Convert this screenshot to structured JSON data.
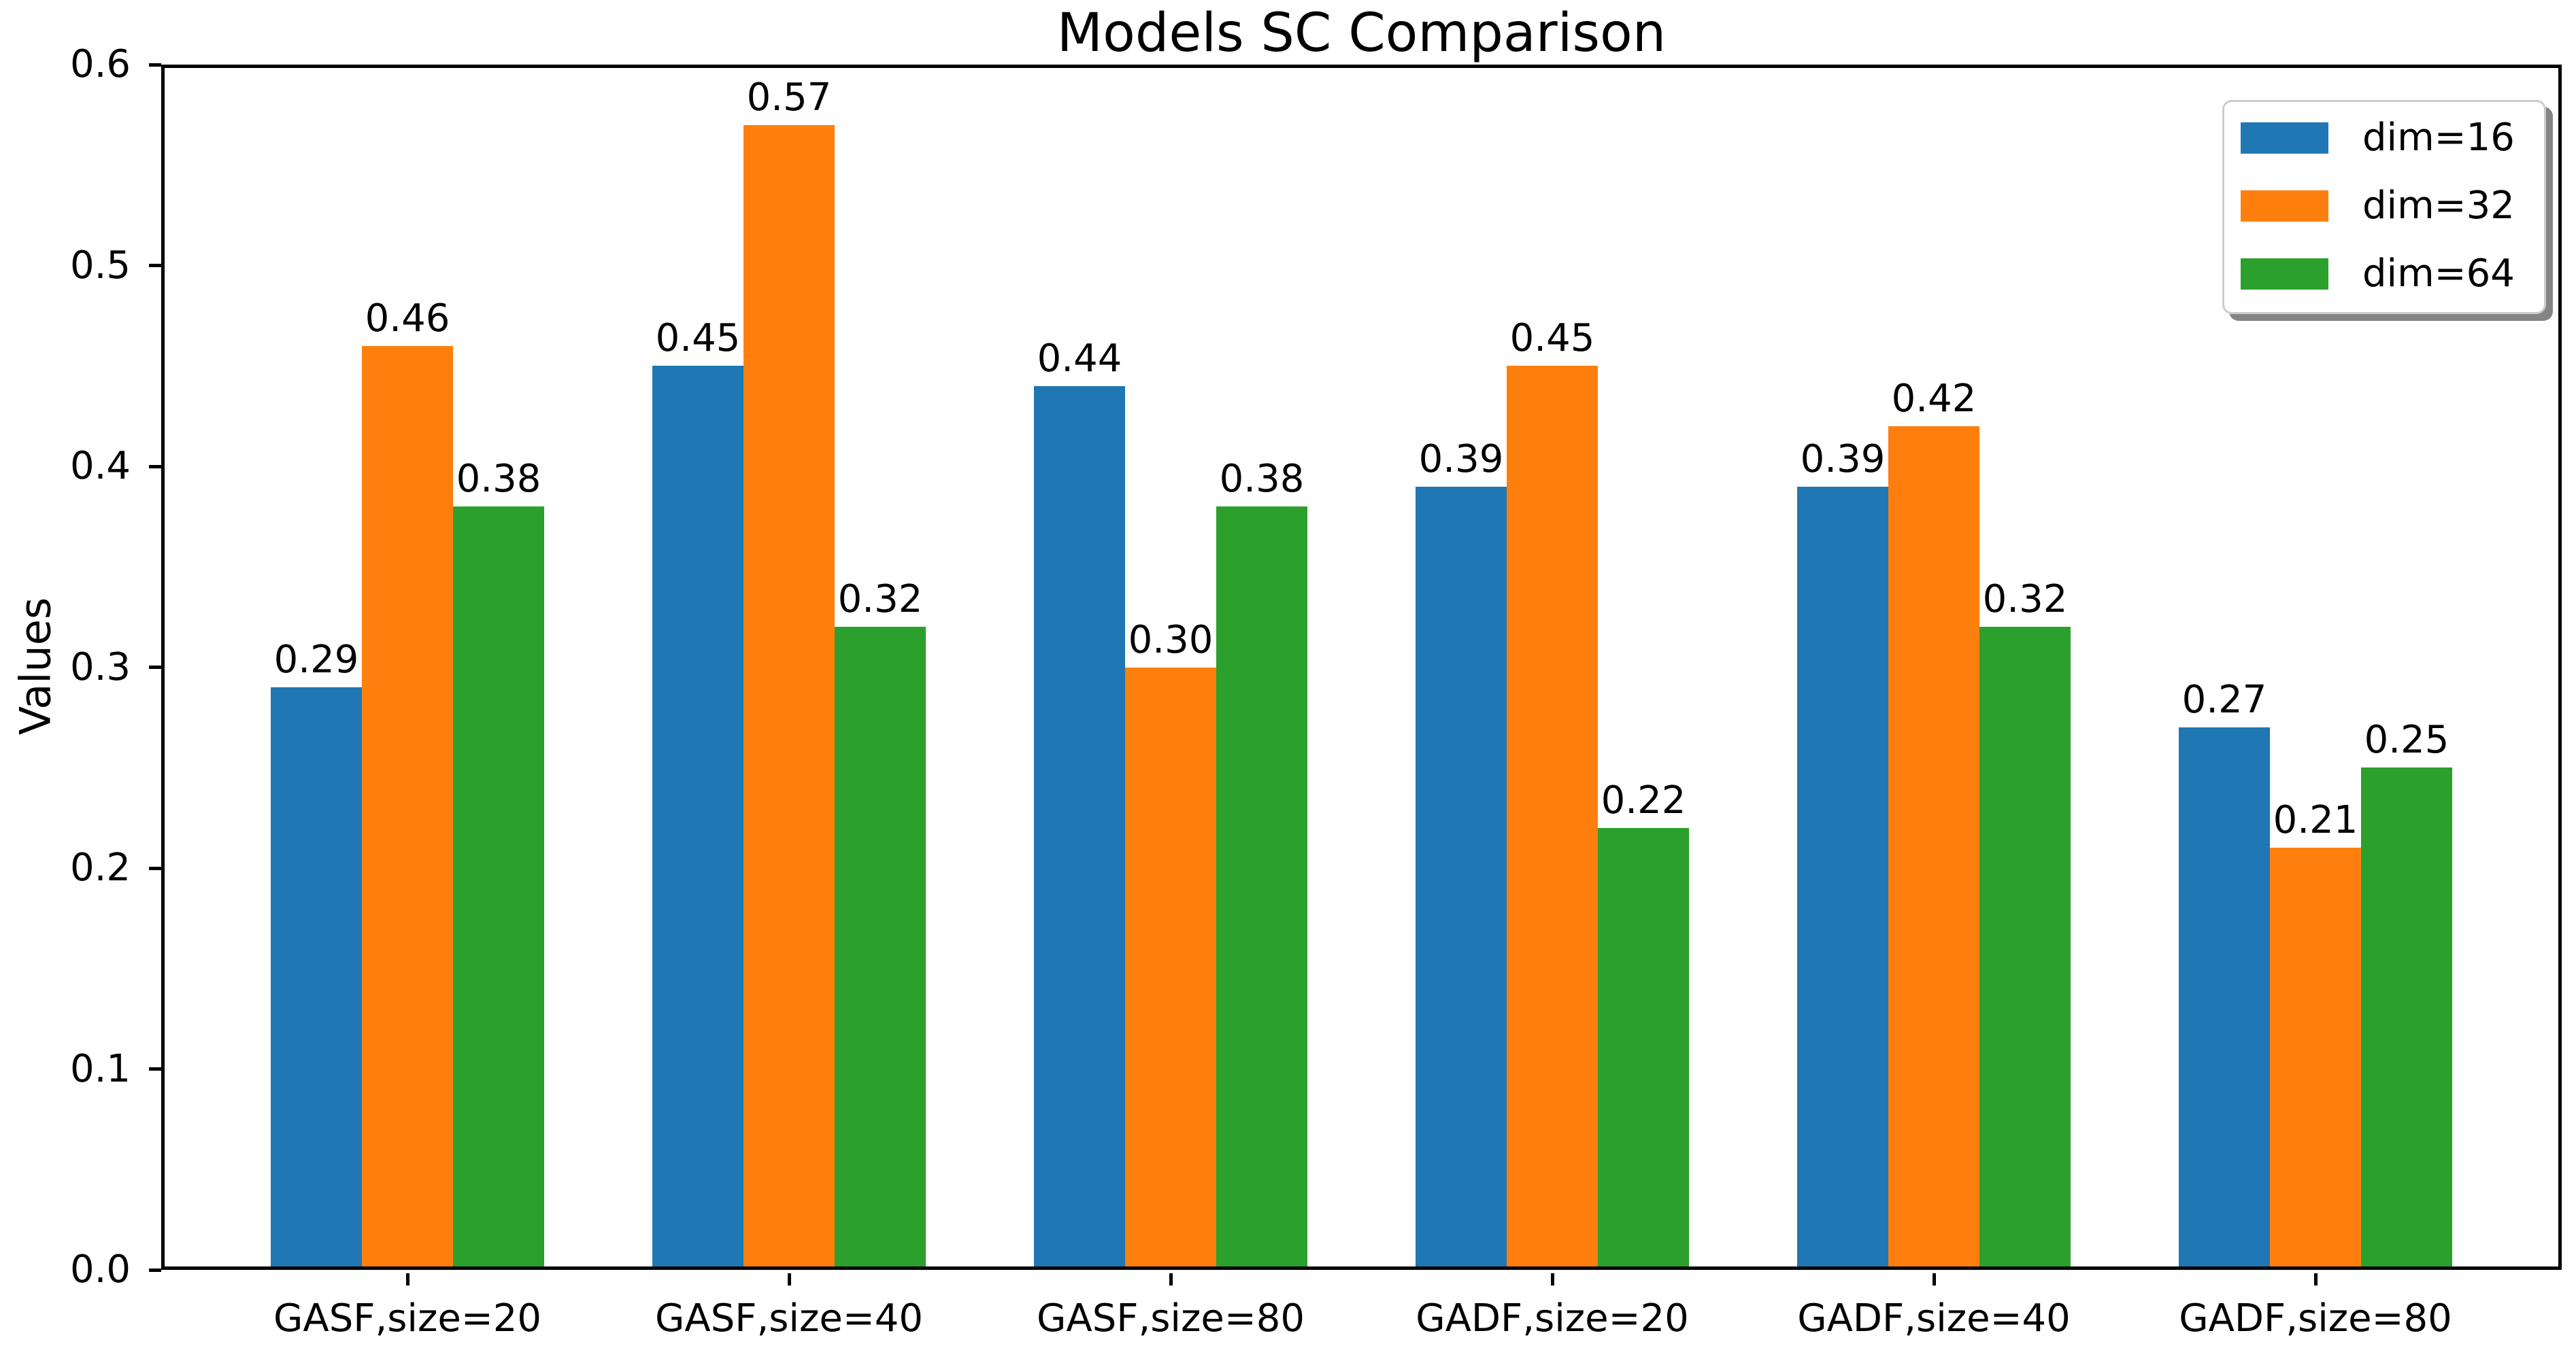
{
  "chart_data": {
    "type": "bar",
    "title": "Models SC Comparison",
    "xlabel": "",
    "ylabel": "Values",
    "categories": [
      "GASF,size=20",
      "GASF,size=40",
      "GASF,size=80",
      "GADF,size=20",
      "GADF,size=40",
      "GADF,size=80"
    ],
    "series": [
      {
        "name": "dim=16",
        "color": "#1f77b4",
        "values": [
          0.29,
          0.45,
          0.44,
          0.39,
          0.39,
          0.27
        ]
      },
      {
        "name": "dim=32",
        "color": "#ff7f0e",
        "values": [
          0.46,
          0.57,
          0.3,
          0.45,
          0.42,
          0.21
        ]
      },
      {
        "name": "dim=64",
        "color": "#2ca02c",
        "values": [
          0.38,
          0.32,
          0.38,
          0.22,
          0.32,
          0.25
        ]
      }
    ],
    "ylim": [
      0.0,
      0.6
    ],
    "ytick_labels": [
      "0.0",
      "0.1",
      "0.2",
      "0.3",
      "0.4",
      "0.5",
      "0.6"
    ],
    "bar_value_labels": [
      [
        "0.29",
        "0.45",
        "0.44",
        "0.39",
        "0.39",
        "0.27"
      ],
      [
        "0.46",
        "0.57",
        "0.30",
        "0.45",
        "0.42",
        "0.21"
      ],
      [
        "0.38",
        "0.32",
        "0.38",
        "0.22",
        "0.32",
        "0.25"
      ]
    ],
    "legend_position": "upper right",
    "grid": false,
    "plot_bg": "#ffffff",
    "spine_color": "#000000"
  }
}
